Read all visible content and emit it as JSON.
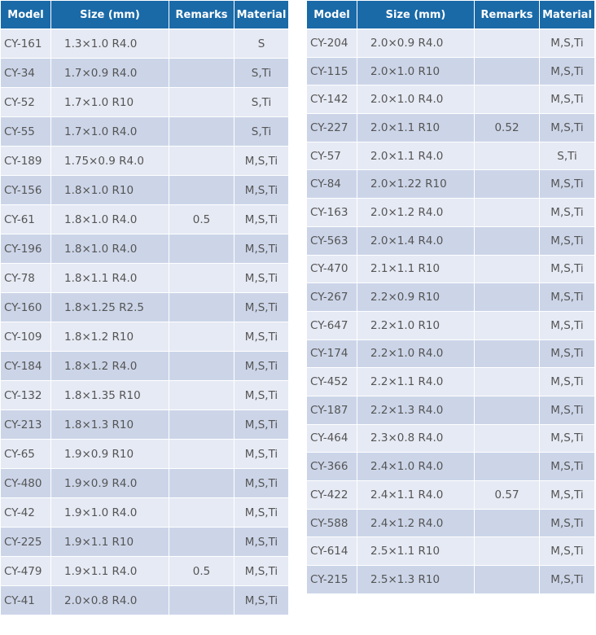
{
  "headers": {
    "model": "Model",
    "size": "Size (mm)",
    "remarks": "Remarks",
    "material": "Material"
  },
  "left_table": [
    {
      "model": "CY-161",
      "size": "1.3×1.0 R4.0",
      "remarks": "",
      "material": "S"
    },
    {
      "model": "CY-34",
      "size": "1.7×0.9 R4.0",
      "remarks": "",
      "material": "S,Ti"
    },
    {
      "model": "CY-52",
      "size": "1.7×1.0 R10",
      "remarks": "",
      "material": "S,Ti"
    },
    {
      "model": "CY-55",
      "size": "1.7×1.0 R4.0",
      "remarks": "",
      "material": "S,Ti"
    },
    {
      "model": "CY-189",
      "size": "1.75×0.9 R4.0",
      "remarks": "",
      "material": "M,S,Ti"
    },
    {
      "model": "CY-156",
      "size": "1.8×1.0 R10",
      "remarks": "",
      "material": "M,S,Ti"
    },
    {
      "model": "CY-61",
      "size": "1.8×1.0 R4.0",
      "remarks": "0.5",
      "material": "M,S,Ti"
    },
    {
      "model": "CY-196",
      "size": "1.8×1.0 R4.0",
      "remarks": "",
      "material": "M,S,Ti"
    },
    {
      "model": "CY-78",
      "size": "1.8×1.1 R4.0",
      "remarks": "",
      "material": "M,S,Ti"
    },
    {
      "model": "CY-160",
      "size": "1.8×1.25 R2.5",
      "remarks": "",
      "material": "M,S,Ti"
    },
    {
      "model": "CY-109",
      "size": "1.8×1.2 R10",
      "remarks": "",
      "material": "M,S,Ti"
    },
    {
      "model": "CY-184",
      "size": "1.8×1.2 R4.0",
      "remarks": "",
      "material": "M,S,Ti"
    },
    {
      "model": "CY-132",
      "size": "1.8×1.35 R10",
      "remarks": "",
      "material": "M,S,Ti"
    },
    {
      "model": "CY-213",
      "size": "1.8×1.3 R10",
      "remarks": "",
      "material": "M,S,Ti"
    },
    {
      "model": "CY-65",
      "size": "1.9×0.9 R10",
      "remarks": "",
      "material": "M,S,Ti"
    },
    {
      "model": "CY-480",
      "size": "1.9×0.9 R4.0",
      "remarks": "",
      "material": "M,S,Ti"
    },
    {
      "model": "CY-42",
      "size": "1.9×1.0 R4.0",
      "remarks": "",
      "material": "M,S,Ti"
    },
    {
      "model": "CY-225",
      "size": "1.9×1.1 R10",
      "remarks": "",
      "material": "M,S,Ti"
    },
    {
      "model": "CY-479",
      "size": "1.9×1.1 R4.0",
      "remarks": "0.5",
      "material": "M,S,Ti"
    },
    {
      "model": "CY-41",
      "size": "2.0×0.8 R4.0",
      "remarks": "",
      "material": "M,S,Ti"
    }
  ],
  "right_table": [
    {
      "model": "CY-204",
      "size": "2.0×0.9 R4.0",
      "remarks": "",
      "material": "M,S,Ti"
    },
    {
      "model": "CY-115",
      "size": "2.0×1.0 R10",
      "remarks": "",
      "material": "M,S,Ti"
    },
    {
      "model": "CY-142",
      "size": "2.0×1.0 R4.0",
      "remarks": "",
      "material": "M,S,Ti"
    },
    {
      "model": "CY-227",
      "size": "2.0×1.1 R10",
      "remarks": "0.52",
      "material": "M,S,Ti"
    },
    {
      "model": "CY-57",
      "size": "2.0×1.1 R4.0",
      "remarks": "",
      "material": "S,Ti"
    },
    {
      "model": "CY-84",
      "size": "2.0×1.22 R10",
      "remarks": "",
      "material": "M,S,Ti"
    },
    {
      "model": "CY-163",
      "size": "2.0×1.2 R4.0",
      "remarks": "",
      "material": "M,S,Ti"
    },
    {
      "model": "CY-563",
      "size": "2.0×1.4 R4.0",
      "remarks": "",
      "material": "M,S,Ti"
    },
    {
      "model": "CY-470",
      "size": "2.1×1.1 R10",
      "remarks": "",
      "material": "M,S,Ti"
    },
    {
      "model": "CY-267",
      "size": "2.2×0.9 R10",
      "remarks": "",
      "material": "M,S,Ti"
    },
    {
      "model": "CY-647",
      "size": "2.2×1.0 R10",
      "remarks": "",
      "material": "M,S,Ti"
    },
    {
      "model": "CY-174",
      "size": "2.2×1.0 R4.0",
      "remarks": "",
      "material": "M,S,Ti"
    },
    {
      "model": "CY-452",
      "size": "2.2×1.1 R4.0",
      "remarks": "",
      "material": "M,S,Ti"
    },
    {
      "model": "CY-187",
      "size": "2.2×1.3 R4.0",
      "remarks": "",
      "material": "M,S,Ti"
    },
    {
      "model": "CY-464",
      "size": "2.3×0.8 R4.0",
      "remarks": "",
      "material": "M,S,Ti"
    },
    {
      "model": "CY-366",
      "size": "2.4×1.0 R4.0",
      "remarks": "",
      "material": "M,S,Ti"
    },
    {
      "model": "CY-422",
      "size": "2.4×1.1 R4.0",
      "remarks": "0.57",
      "material": "M,S,Ti"
    },
    {
      "model": "CY-588",
      "size": "2.4×1.2 R4.0",
      "remarks": "",
      "material": "M,S,Ti"
    },
    {
      "model": "CY-614",
      "size": "2.5×1.1 R10",
      "remarks": "",
      "material": "M,S,Ti"
    },
    {
      "model": "CY-215",
      "size": "2.5×1.3 R10",
      "remarks": "",
      "material": "M,S,Ti"
    }
  ],
  "colors": {
    "header_bg": "#1a6aa8",
    "row_odd": "#e6eaf4",
    "row_even": "#ccd5e8"
  }
}
